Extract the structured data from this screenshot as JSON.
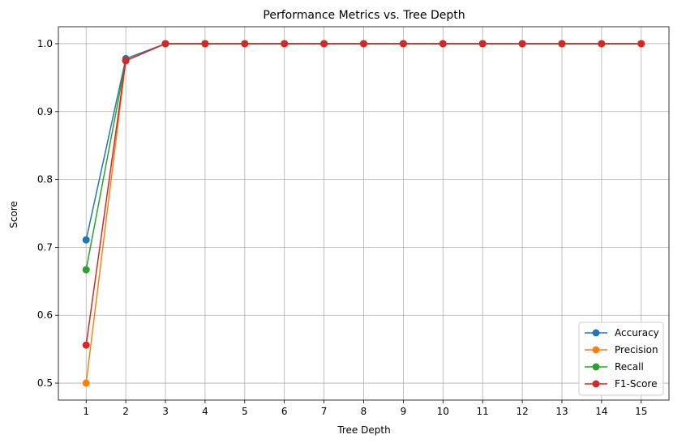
{
  "chart_data": {
    "type": "line",
    "title": "Performance Metrics vs. Tree Depth",
    "xlabel": "Tree Depth",
    "ylabel": "Score",
    "x": [
      1,
      2,
      3,
      4,
      5,
      6,
      7,
      8,
      9,
      10,
      11,
      12,
      13,
      14,
      15
    ],
    "xticks": [
      "1",
      "2",
      "3",
      "4",
      "5",
      "6",
      "7",
      "8",
      "9",
      "10",
      "11",
      "12",
      "13",
      "14",
      "15"
    ],
    "yticks": [
      "0.5",
      "0.6",
      "0.7",
      "0.8",
      "0.9",
      "1.0"
    ],
    "ylim": [
      0.475,
      1.025
    ],
    "xlim": [
      0.3,
      15.7
    ],
    "grid": true,
    "legend_position": "lower-right",
    "series": [
      {
        "name": "Accuracy",
        "color": "#1f77b4",
        "values": [
          0.711,
          0.978,
          1,
          1,
          1,
          1,
          1,
          1,
          1,
          1,
          1,
          1,
          1,
          1,
          1
        ]
      },
      {
        "name": "Precision",
        "color": "#ff7f0e",
        "values": [
          0.5,
          0.975,
          1,
          1,
          1,
          1,
          1,
          1,
          1,
          1,
          1,
          1,
          1,
          1,
          1
        ]
      },
      {
        "name": "Recall",
        "color": "#2ca02c",
        "values": [
          0.667,
          0.975,
          1,
          1,
          1,
          1,
          1,
          1,
          1,
          1,
          1,
          1,
          1,
          1,
          1
        ]
      },
      {
        "name": "F1-Score",
        "color": "#d62728",
        "values": [
          0.556,
          0.975,
          1,
          1,
          1,
          1,
          1,
          1,
          1,
          1,
          1,
          1,
          1,
          1,
          1
        ]
      }
    ]
  }
}
